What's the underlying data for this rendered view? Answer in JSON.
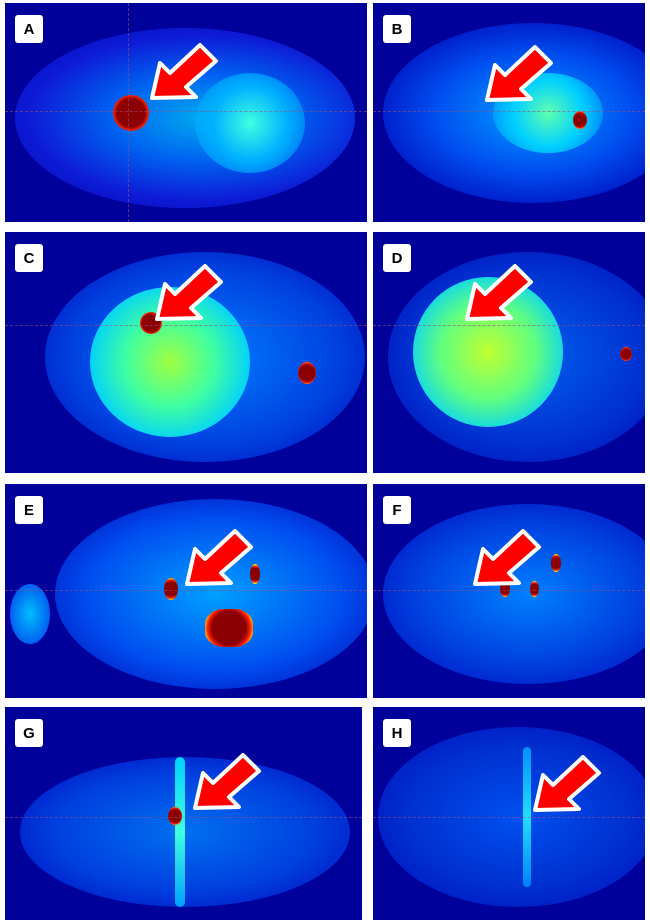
{
  "panels": [
    {
      "label": "A"
    },
    {
      "label": "B"
    },
    {
      "label": "C"
    },
    {
      "label": "D"
    },
    {
      "label": "E"
    },
    {
      "label": "F"
    },
    {
      "label": "G"
    },
    {
      "label": "H"
    }
  ],
  "colors": {
    "background": "#00009a",
    "arrow": "#ff0000",
    "arrow_outline": "#ffffff",
    "hotspot": "#8b0000"
  }
}
